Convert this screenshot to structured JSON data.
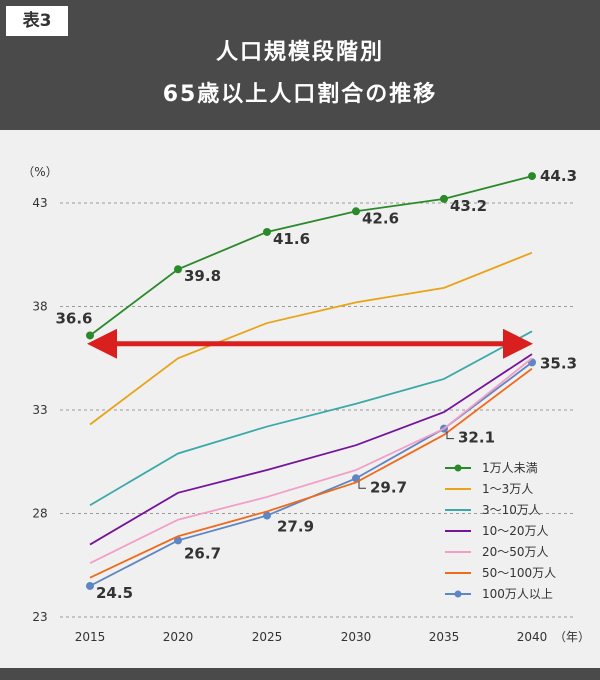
{
  "header": {
    "badge": "表3",
    "title_line1": "人口規模段階別",
    "title_line2": "65歳以上人口割合の推移"
  },
  "chart_data": {
    "type": "line",
    "title": "人口規模段階別 65歳以上人口割合の推移",
    "ylabel": "（%）",
    "xlabel": "（年）",
    "x": [
      2015,
      2020,
      2025,
      2030,
      2035,
      2040
    ],
    "x_tick_labels": [
      "2015",
      "2020",
      "2025",
      "2030",
      "2035",
      "2040"
    ],
    "yticks": [
      23,
      28,
      33,
      38,
      43
    ],
    "y_tick_labels": [
      "23",
      "28",
      "33",
      "38",
      "43"
    ],
    "ylim": [
      23,
      45
    ],
    "grid": "horizontal dashed",
    "legend_position": "bottom-right",
    "series": [
      {
        "name": "1万人未満",
        "color": "#2a8a2a",
        "values": [
          36.6,
          39.8,
          41.6,
          42.6,
          43.2,
          44.3
        ],
        "markers": true,
        "data_labels": [
          "36.6",
          "39.8",
          "41.6",
          "42.6",
          "43.2",
          "44.3"
        ]
      },
      {
        "name": "1～3万人",
        "color": "#e8a317",
        "values": [
          32.3,
          35.5,
          37.2,
          38.2,
          38.9,
          40.6
        ],
        "markers": false
      },
      {
        "name": "3～10万人",
        "color": "#3aa9a9",
        "values": [
          28.4,
          30.9,
          32.2,
          33.3,
          34.5,
          36.8
        ],
        "markers": false
      },
      {
        "name": "10～20万人",
        "color": "#74149b",
        "values": [
          26.5,
          29.0,
          30.1,
          31.3,
          32.9,
          35.7
        ],
        "markers": false
      },
      {
        "name": "20～50万人",
        "color": "#f39ec7",
        "values": [
          25.6,
          27.7,
          28.8,
          30.1,
          32.1,
          35.5
        ],
        "markers": false
      },
      {
        "name": "50～100万人",
        "color": "#f06a1c",
        "values": [
          24.9,
          26.9,
          28.1,
          29.5,
          31.8,
          35.0
        ],
        "markers": false
      },
      {
        "name": "100万人以上",
        "color": "#5f86c4",
        "values": [
          24.5,
          26.7,
          27.9,
          29.7,
          32.1,
          35.3
        ],
        "markers": true,
        "data_labels": [
          "24.5",
          "26.7",
          "27.9",
          "29.7",
          "32.1",
          "35.3"
        ]
      }
    ],
    "annotation": {
      "type": "double-arrow",
      "color": "#d9201e",
      "y_value": 36.2,
      "from_x": 2015,
      "to_x": 2040
    }
  }
}
